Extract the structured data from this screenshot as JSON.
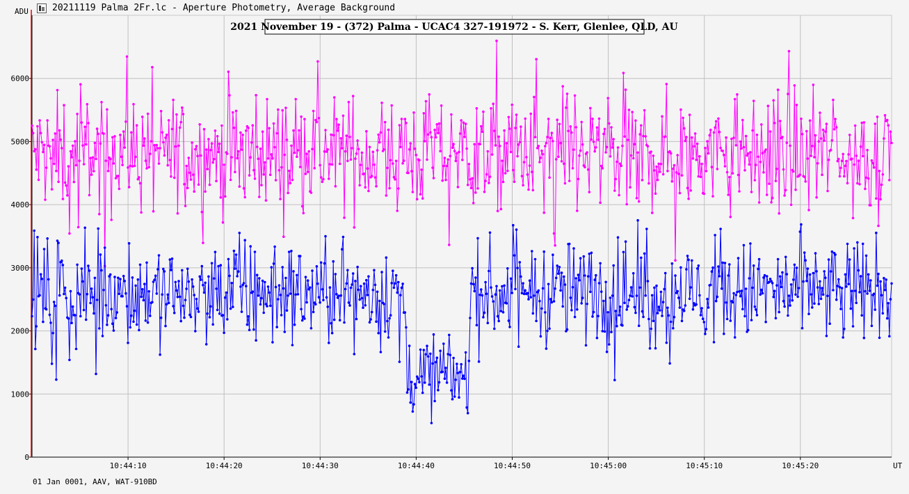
{
  "window": {
    "title": "20211119 Palma 2Fr.lc - Aperture Photometry, Average Background",
    "icon": "light-curve-icon"
  },
  "footer": "01 Jan 0001, AAV, WAT-910BD",
  "chart_data": {
    "type": "line",
    "title": "2021 November 19 - (372) Palma - UCAC4 327-191972 - S. Kerr, Glenlee, QLD, AU",
    "ylabel": "ADU",
    "xlabel": "UT",
    "ylim": [
      0,
      7000
    ],
    "yticks": [
      0,
      1000,
      2000,
      3000,
      4000,
      5000,
      6000
    ],
    "xlim": [
      "10:44:00.0",
      "10:45:29.5"
    ],
    "xticks": [
      "10:44:10",
      "10:44:20",
      "10:44:30",
      "10:44:40",
      "10:44:50",
      "10:45:00",
      "10:45:10",
      "10:45:20"
    ],
    "grid": true,
    "marker_line": "10:44:00.0",
    "series": [
      {
        "color": "#ff00ff",
        "baseline": 4800,
        "scatter": 450,
        "occultation": null
      },
      {
        "color": "#0000ff",
        "baseline": 2600,
        "scatter": 400,
        "occultation": {
          "start": "10:44:39.0",
          "end": "10:44:45.5",
          "level": 1300
        }
      }
    ]
  }
}
